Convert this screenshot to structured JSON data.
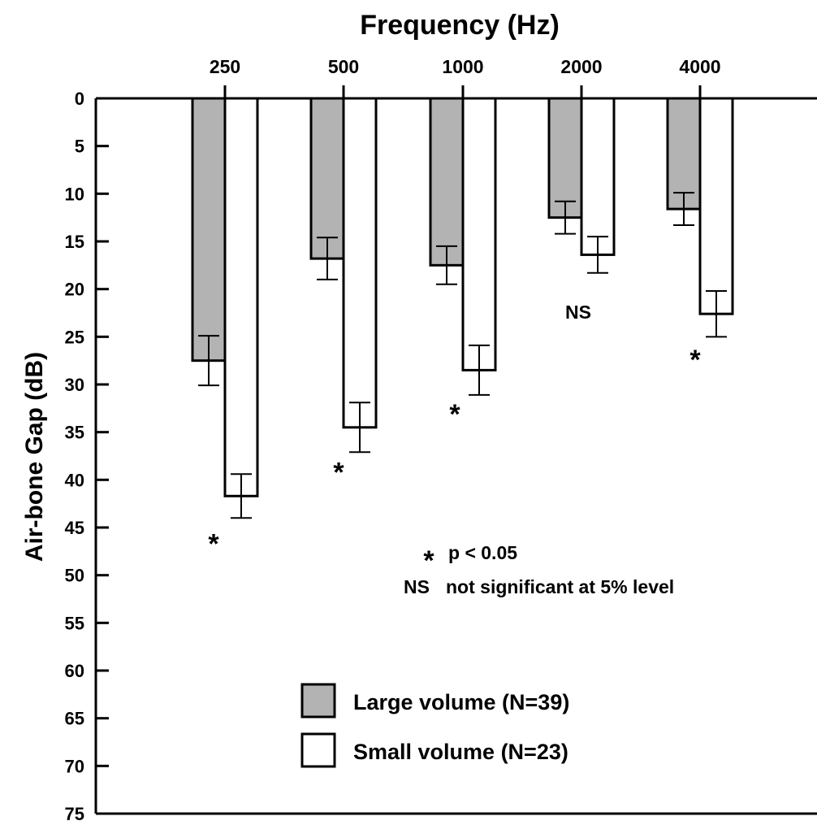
{
  "chart_data": {
    "type": "bar",
    "title": "Frequency (Hz)",
    "xlabel": "Frequency (Hz)",
    "ylabel": "Air-bone Gap (dB)",
    "categories": [
      "250",
      "500",
      "1000",
      "2000",
      "4000"
    ],
    "ylim": [
      0,
      75
    ],
    "y_inverted": true,
    "x_axis_position": "top",
    "y_ticks": [
      0,
      5,
      10,
      15,
      20,
      25,
      30,
      35,
      40,
      45,
      50,
      55,
      60,
      65,
      70,
      75
    ],
    "grid": false,
    "series": [
      {
        "name": "Large volume (N=39)",
        "color": "#b3b3b3",
        "values": [
          27.5,
          16.8,
          17.5,
          12.5,
          11.6
        ],
        "errors": [
          2.6,
          2.2,
          2.0,
          1.7,
          1.7
        ]
      },
      {
        "name": "Small volume (N=23)",
        "color": "#ffffff",
        "values": [
          41.7,
          34.5,
          28.5,
          16.4,
          22.6
        ],
        "errors": [
          2.3,
          2.6,
          2.6,
          1.9,
          2.4
        ]
      }
    ],
    "significance": [
      {
        "category": "250",
        "label": "*",
        "y": 46.5
      },
      {
        "category": "500",
        "label": "*",
        "y": 39.0
      },
      {
        "category": "1000",
        "label": "*",
        "y": 32.9
      },
      {
        "category": "2000",
        "label": "NS",
        "y": 22.4
      },
      {
        "category": "4000",
        "label": "*",
        "y": 27.2
      }
    ],
    "annotations": [
      {
        "symbol": "*",
        "text": "p < 0.05"
      },
      {
        "symbol": "NS",
        "text": "not significant at 5% level"
      }
    ],
    "legend": {
      "placement": "bottom-center",
      "entries": [
        "Large volume (N=39)",
        "Small volume (N=23)"
      ]
    }
  }
}
